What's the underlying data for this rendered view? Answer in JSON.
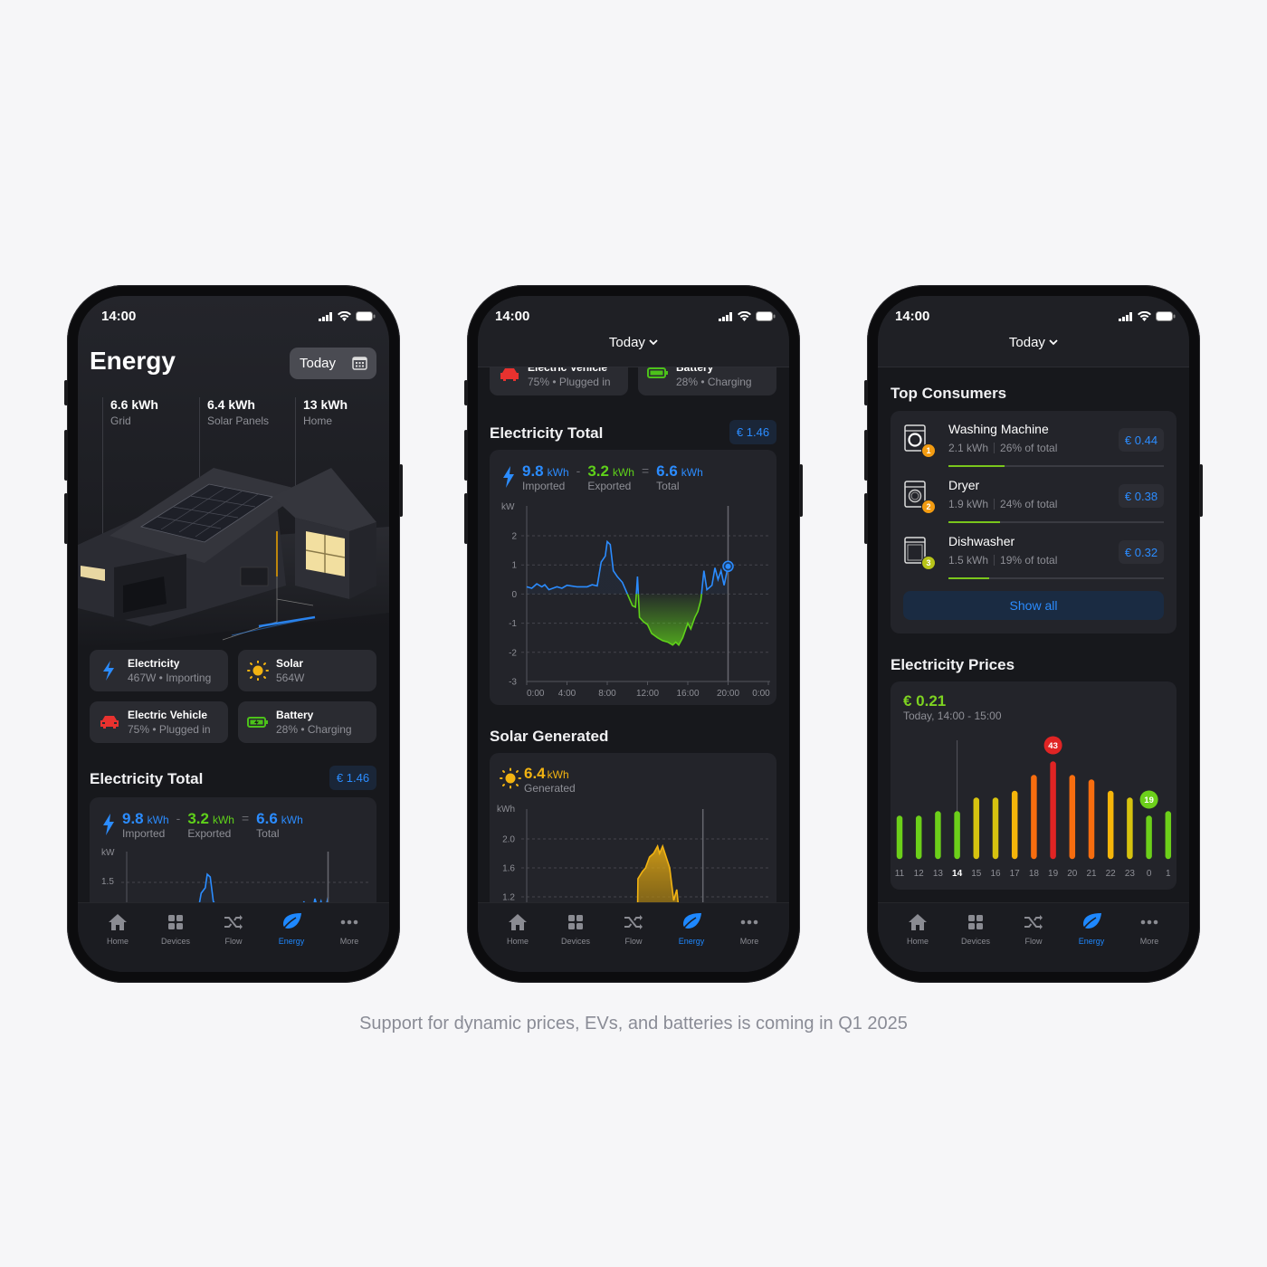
{
  "caption": "Support for dynamic prices, EVs, and batteries is coming in Q1 2025",
  "colors": {
    "accent_blue": "#2b8cff",
    "export_green": "#5fd11a",
    "solar_yellow": "#f2b312",
    "price_high_red": "#e02424",
    "background": "#17181c"
  },
  "status_bar": {
    "time": "14:00",
    "icons": [
      "signal-icon",
      "wifi-icon",
      "battery-icon"
    ]
  },
  "nav": {
    "active": "Energy",
    "items": [
      {
        "label": "Home",
        "icon": "home-icon"
      },
      {
        "label": "Devices",
        "icon": "devices-grid-icon"
      },
      {
        "label": "Flow",
        "icon": "shuffle-flow-icon"
      },
      {
        "label": "Energy",
        "icon": "leaf-icon"
      },
      {
        "label": "More",
        "icon": "more-dots-icon"
      }
    ]
  },
  "energy_screen": {
    "title": "Energy",
    "date_button": "Today",
    "stats": [
      {
        "value": "6.6 kWh",
        "label": "Grid"
      },
      {
        "value": "6.4 kWh",
        "label": "Solar Panels"
      },
      {
        "value": "13 kWh",
        "label": "Home"
      }
    ],
    "cards": [
      {
        "title": "Electricity",
        "subtitle": "467W • Importing",
        "icon": "lightning-icon"
      },
      {
        "title": "Solar",
        "subtitle": "564W",
        "icon": "sun-icon"
      },
      {
        "title": "Electric Vehicle",
        "subtitle": "75% • Plugged in",
        "icon": "car-icon"
      },
      {
        "title": "Battery",
        "subtitle": "28% • Charging",
        "icon": "battery-charging-icon"
      }
    ]
  },
  "electricity_total": {
    "title": "Electricity Total",
    "cost": "€ 1.46",
    "imported": {
      "value": "9.8",
      "unit": "kWh",
      "label": "Imported"
    },
    "minus": "-",
    "exported": {
      "value": "3.2",
      "unit": "kWh",
      "label": "Exported"
    },
    "equals": "=",
    "total": {
      "value": "6.6",
      "unit": "kWh",
      "label": "Total"
    },
    "y_unit": "kW",
    "preview_tick": "1.5"
  },
  "detail_screen": {
    "date_selector": "Today",
    "solar": {
      "title": "Solar Generated",
      "value": "6.4",
      "unit": "kWh",
      "label": "Generated",
      "y_unit": "kWh"
    }
  },
  "prices_screen": {
    "date_selector": "Today",
    "top_consumers": {
      "title": "Top Consumers",
      "items": [
        {
          "name": "Washing Machine",
          "energy": "2.1 kWh",
          "share": "26% of total",
          "share_pct": 26,
          "cost": "€ 0.44",
          "rank": "1",
          "rank_color": "#f39c12",
          "icon": "washing-machine-icon"
        },
        {
          "name": "Dryer",
          "energy": "1.9 kWh",
          "share": "24% of total",
          "share_pct": 24,
          "cost": "€ 0.38",
          "rank": "2",
          "rank_color": "#f39c12",
          "icon": "dryer-icon"
        },
        {
          "name": "Dishwasher",
          "energy": "1.5 kWh",
          "share": "19% of total",
          "share_pct": 19,
          "cost": "€ 0.32",
          "rank": "3",
          "rank_color": "#b8c41a",
          "icon": "dishwasher-icon"
        }
      ],
      "show_all": "Show all"
    },
    "prices": {
      "title": "Electricity Prices",
      "current": "€ 0.21",
      "period": "Today, 14:00 - 15:00"
    }
  },
  "chart_data": [
    {
      "type": "line",
      "title": "Electricity Total",
      "ylabel": "kW",
      "xlim": [
        0,
        24
      ],
      "ylim": [
        -3,
        2
      ],
      "x_ticks": [
        "0:00",
        "4:00",
        "8:00",
        "12:00",
        "16:00",
        "20:00",
        "0:00"
      ],
      "y_ticks": [
        "2",
        "1",
        "0",
        "-1",
        "-2",
        "-3"
      ],
      "grid": true,
      "cursor_hour": 20,
      "points": [
        [
          0,
          0.25
        ],
        [
          0.5,
          0.2
        ],
        [
          1,
          0.35
        ],
        [
          1.5,
          0.25
        ],
        [
          1.8,
          0.32
        ],
        [
          2.2,
          0.15
        ],
        [
          3,
          0.25
        ],
        [
          3.5,
          0.2
        ],
        [
          4,
          0.3
        ],
        [
          5,
          0.25
        ],
        [
          6,
          0.25
        ],
        [
          6.5,
          0.32
        ],
        [
          7,
          0.28
        ],
        [
          7.4,
          1.1
        ],
        [
          7.8,
          1.3
        ],
        [
          8,
          1.8
        ],
        [
          8.3,
          1.7
        ],
        [
          8.6,
          0.8
        ],
        [
          9,
          0.6
        ],
        [
          9.5,
          0.4
        ],
        [
          10,
          0
        ],
        [
          10.5,
          -0.4
        ],
        [
          10.8,
          -0.45
        ],
        [
          11,
          0.6
        ],
        [
          11.2,
          -0.8
        ],
        [
          11.6,
          -0.95
        ],
        [
          12,
          -1.05
        ],
        [
          12.4,
          -1.35
        ],
        [
          13,
          -1.5
        ],
        [
          13.5,
          -1.6
        ],
        [
          14,
          -1.65
        ],
        [
          14.5,
          -1.75
        ],
        [
          14.8,
          -1.65
        ],
        [
          15.1,
          -1.75
        ],
        [
          15.5,
          -1.5
        ],
        [
          16,
          -1.0
        ],
        [
          16.3,
          -1.2
        ],
        [
          16.7,
          -0.8
        ],
        [
          17,
          -0.6
        ],
        [
          17.3,
          -0.2
        ],
        [
          17.6,
          0.8
        ],
        [
          17.9,
          0.15
        ],
        [
          18.4,
          0.3
        ],
        [
          18.7,
          0.9
        ],
        [
          19,
          0.5
        ],
        [
          19.3,
          0.8
        ],
        [
          19.6,
          0.3
        ],
        [
          20,
          0.95
        ]
      ]
    },
    {
      "type": "area",
      "title": "Solar Generated",
      "ylabel": "kWh",
      "y_ticks": [
        "2.0",
        "1.6",
        "1.2"
      ],
      "grid": true,
      "cursor_hour": 17.5,
      "points": [
        [
          11,
          0.9
        ],
        [
          11.05,
          1.45
        ],
        [
          11.5,
          1.55
        ],
        [
          11.8,
          1.6
        ],
        [
          12.2,
          1.75
        ],
        [
          12.6,
          1.8
        ],
        [
          13,
          1.9
        ],
        [
          13.2,
          1.8
        ],
        [
          13.5,
          1.9
        ],
        [
          14.2,
          1.6
        ],
        [
          14.6,
          1.15
        ],
        [
          14.9,
          1.3
        ],
        [
          15.2,
          0.9
        ]
      ]
    },
    {
      "type": "bar",
      "title": "Electricity Prices",
      "categories": [
        "11",
        "12",
        "13",
        "14",
        "15",
        "16",
        "17",
        "18",
        "19",
        "20",
        "21",
        "22",
        "23",
        "0",
        "1"
      ],
      "values": [
        19,
        19,
        21,
        21,
        27,
        27,
        30,
        37,
        43,
        37,
        35,
        30,
        27,
        19,
        21
      ],
      "selected": "14",
      "max_label": "43",
      "min_label": "19"
    }
  ]
}
